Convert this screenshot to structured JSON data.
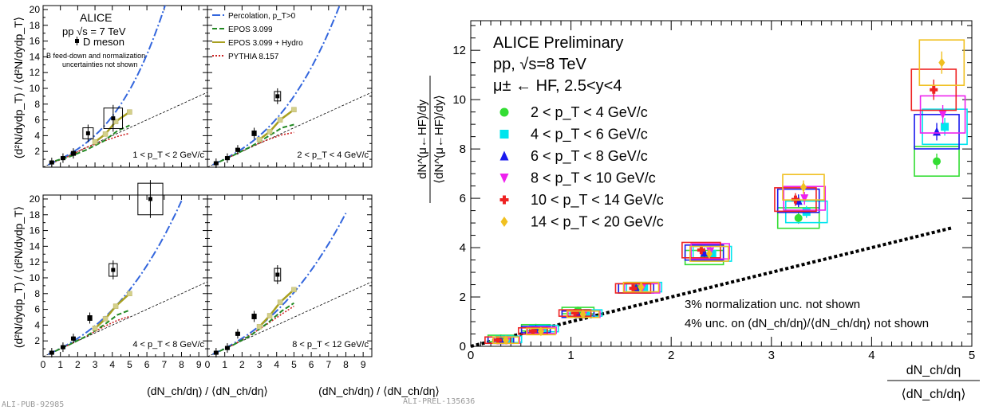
{
  "left_figure": {
    "tag": "ALI-PUB-92985",
    "x_axis_label": "(dN_ch/dη) / ⟨dN_ch/dη⟩",
    "y_axis_label": "(d²N/dydp_T) / ⟨d²N/dydp_T⟩",
    "xlim": [
      0,
      9.5
    ],
    "ylim": [
      0,
      20.5
    ],
    "x_ticks": [
      "0",
      "1",
      "2",
      "3",
      "4",
      "5",
      "6",
      "7",
      "8",
      "9"
    ],
    "y_ticks": [
      "2",
      "4",
      "6",
      "8",
      "10",
      "12",
      "14",
      "16",
      "18",
      "20"
    ],
    "text": {
      "experiment": "ALICE",
      "system": "pp √s = 7 TeV",
      "particle": "D meson",
      "note_line1": "B feed-down and normalization",
      "note_line2": "uncertainties not shown"
    },
    "legend": [
      {
        "label": "Percolation, p_T>0",
        "color": "#3366dd",
        "style": "dashdot"
      },
      {
        "label": "EPOS 3.099",
        "color": "#228822",
        "style": "dash"
      },
      {
        "label": "EPOS 3.099 + Hydro",
        "color": "#a8a020",
        "style": "solid"
      },
      {
        "label": "PYTHIA 8.157",
        "color": "#cc2222",
        "style": "dotted"
      }
    ],
    "panels": [
      {
        "label": "1 < p_T < 2 GeV/c",
        "data": [
          [
            0.5,
            0.6
          ],
          [
            1.15,
            1.15
          ],
          [
            1.75,
            1.75
          ],
          [
            2.6,
            4.3
          ],
          [
            4.05,
            6.2
          ]
        ],
        "errors": [
          [
            0.1,
            0.1
          ],
          [
            0.1,
            0.15
          ],
          [
            0.2,
            0.25
          ],
          [
            0.5,
            0.7
          ],
          [
            0.9,
            1.3
          ]
        ],
        "pct_a": 2.0,
        "pct_b": 0.32,
        "epos": [
          [
            0.7,
            0.8
          ],
          [
            1.5,
            1.3
          ],
          [
            2.5,
            2.2
          ],
          [
            3.5,
            3.3
          ],
          [
            4.3,
            4.6
          ],
          [
            5.0,
            5.3
          ]
        ],
        "hydro": [
          [
            3.0,
            3.2
          ],
          [
            3.6,
            4.2
          ],
          [
            4.2,
            5.8
          ],
          [
            5.0,
            7.0
          ]
        ],
        "pythia": [
          [
            0.7,
            0.7
          ],
          [
            1.5,
            1.4
          ],
          [
            2.5,
            2.5
          ],
          [
            3.5,
            3.3
          ],
          [
            4.3,
            3.9
          ],
          [
            5.0,
            4.3
          ]
        ]
      },
      {
        "label": "2 < p_T < 4 GeV/c",
        "data": [
          [
            0.5,
            0.5
          ],
          [
            1.15,
            1.15
          ],
          [
            1.75,
            2.2
          ],
          [
            2.7,
            4.3
          ],
          [
            4.05,
            9.0
          ]
        ],
        "errors": [
          [
            0.1,
            0.1
          ],
          [
            0.1,
            0.15
          ],
          [
            0.15,
            0.2
          ],
          [
            0.2,
            0.3
          ],
          [
            0.3,
            0.6
          ]
        ],
        "pct_a": 1.75,
        "pct_b": 0.4,
        "epos": [
          [
            0.7,
            0.7
          ],
          [
            1.5,
            1.5
          ],
          [
            2.5,
            2.6
          ],
          [
            3.5,
            3.9
          ],
          [
            4.3,
            5.0
          ],
          [
            5.0,
            5.4
          ]
        ],
        "hydro": [
          [
            3.0,
            3.5
          ],
          [
            3.6,
            4.5
          ],
          [
            4.2,
            6.0
          ],
          [
            5.0,
            7.3
          ]
        ],
        "pythia": [
          [
            0.7,
            0.7
          ],
          [
            1.5,
            1.5
          ],
          [
            2.5,
            2.6
          ],
          [
            3.5,
            3.5
          ],
          [
            4.3,
            4.1
          ],
          [
            5.0,
            4.4
          ]
        ]
      },
      {
        "label": "4 < p_T < 8 GeV/c",
        "data": [
          [
            0.5,
            0.5
          ],
          [
            1.15,
            1.2
          ],
          [
            1.75,
            2.3
          ],
          [
            2.7,
            4.9
          ],
          [
            4.05,
            11.0
          ],
          [
            6.2,
            20.0
          ]
        ],
        "errors": [
          [
            0.1,
            0.1
          ],
          [
            0.1,
            0.15
          ],
          [
            0.15,
            0.2
          ],
          [
            0.2,
            0.3
          ],
          [
            0.4,
            0.8
          ],
          [
            1.2,
            2.0
          ]
        ],
        "pct_a": 1.6,
        "pct_b": 0.44,
        "epos": [
          [
            0.7,
            0.7
          ],
          [
            1.5,
            1.5
          ],
          [
            2.5,
            2.6
          ],
          [
            3.5,
            4.0
          ],
          [
            4.3,
            5.3
          ],
          [
            5.0,
            5.9
          ]
        ],
        "hydro": [
          [
            3.0,
            3.6
          ],
          [
            3.6,
            4.8
          ],
          [
            4.2,
            6.4
          ],
          [
            5.0,
            8.0
          ]
        ],
        "pythia": [
          [
            0.7,
            0.7
          ],
          [
            1.5,
            1.5
          ],
          [
            2.5,
            2.6
          ],
          [
            3.5,
            3.8
          ],
          [
            4.3,
            4.6
          ],
          [
            5.0,
            5.1
          ]
        ]
      },
      {
        "label": "8 < p_T < 12 GeV/c",
        "data": [
          [
            0.5,
            0.5
          ],
          [
            1.15,
            1.1
          ],
          [
            1.75,
            2.9
          ],
          [
            2.7,
            5.1
          ],
          [
            4.05,
            10.4
          ]
        ],
        "errors": [
          [
            0.1,
            0.1
          ],
          [
            0.1,
            0.15
          ],
          [
            0.15,
            0.2
          ],
          [
            0.2,
            0.3
          ],
          [
            0.3,
            0.8
          ]
        ],
        "pct_a": 1.5,
        "pct_b": 0.47,
        "epos": [
          [
            0.7,
            0.7
          ],
          [
            1.5,
            1.5
          ],
          [
            2.5,
            2.7
          ],
          [
            3.5,
            4.3
          ],
          [
            4.3,
            5.8
          ],
          [
            5.0,
            6.8
          ]
        ],
        "hydro": [
          [
            3.0,
            3.8
          ],
          [
            3.6,
            5.2
          ],
          [
            4.2,
            6.9
          ],
          [
            5.0,
            8.5
          ]
        ],
        "pythia": [
          [
            0.7,
            0.7
          ],
          [
            1.5,
            1.5
          ],
          [
            2.5,
            2.8
          ],
          [
            3.5,
            4.2
          ],
          [
            4.3,
            5.4
          ],
          [
            5.0,
            6.4
          ]
        ]
      }
    ]
  },
  "right_figure": {
    "tag": "ALI-PREL-135636",
    "title_line1": "ALICE Preliminary",
    "title_line2": "pp, √s=8 TeV",
    "title_line3": "μ± ← HF, 2.5<y<4",
    "y_axis_label_num": "dN^(μ←HF)/dy",
    "y_axis_label_den": "⟨dN^(μ←HF)/dy⟩",
    "x_axis_label_num": "dN_ch/dη",
    "x_axis_label_den": "⟨dN_ch/dη⟩",
    "xlim": [
      0,
      5
    ],
    "ylim": [
      0,
      13.2
    ],
    "x_ticks": [
      "0",
      "1",
      "2",
      "3",
      "4",
      "5"
    ],
    "y_ticks": [
      "0",
      "2",
      "4",
      "6",
      "8",
      "10",
      "12"
    ],
    "note_line1": "3% normalization unc. not shown",
    "note_line2": "4% unc. on (dN_ch/dη)/⟨dN_ch/dη⟩ not shown",
    "diagonal": [
      [
        0,
        0
      ],
      [
        4.8,
        4.8
      ]
    ]
  },
  "chart_data": {
    "type": "scatter",
    "x": [
      0.3,
      0.65,
      1.07,
      1.65,
      2.33,
      3.27,
      4.65
    ],
    "series": [
      {
        "name": "2 < p_T < 4 GeV/c",
        "color": "#33dd33",
        "marker": "circle",
        "dx": 0.0,
        "y": [
          0.32,
          0.75,
          1.45,
          2.35,
          3.6,
          5.2,
          7.5
        ]
      },
      {
        "name": "4 < p_T < 6 GeV/c",
        "color": "#00e5ee",
        "marker": "square",
        "dx": 0.08,
        "y": [
          0.28,
          0.72,
          1.35,
          2.4,
          3.75,
          5.45,
          8.9
        ]
      },
      {
        "name": "6 < p_T < 8 GeV/c",
        "color": "#1a1aee",
        "marker": "triangle-up",
        "dx": 0.0,
        "y": [
          0.25,
          0.68,
          1.3,
          2.35,
          3.8,
          5.9,
          8.7
        ]
      },
      {
        "name": "8 < p_T < 10 GeV/c",
        "color": "#ee22ee",
        "marker": "triangle-down",
        "dx": 0.06,
        "y": [
          0.25,
          0.65,
          1.3,
          2.35,
          3.85,
          6.0,
          9.4
        ]
      },
      {
        "name": "10 < p_T < 14 GeV/c",
        "color": "#ee2222",
        "marker": "cross",
        "dx": -0.03,
        "y": [
          0.25,
          0.62,
          1.35,
          2.35,
          3.9,
          5.95,
          10.4
        ]
      },
      {
        "name": "14 < p_T < 20 GeV/c",
        "color": "#f0c020",
        "marker": "diamond",
        "dx": 0.05,
        "y": [
          0.25,
          0.6,
          1.3,
          2.4,
          3.75,
          6.45,
          11.5
        ]
      }
    ],
    "title": "ALICE Preliminary",
    "xlabel": "dN_ch/dη / ⟨dN_ch/dη⟩",
    "ylabel": "dN^(μ←HF)/dy / ⟨dN^(μ←HF)/dy⟩",
    "xlim": [
      0,
      5
    ],
    "ylim": [
      0,
      13.2
    ],
    "legend_position": "left"
  }
}
